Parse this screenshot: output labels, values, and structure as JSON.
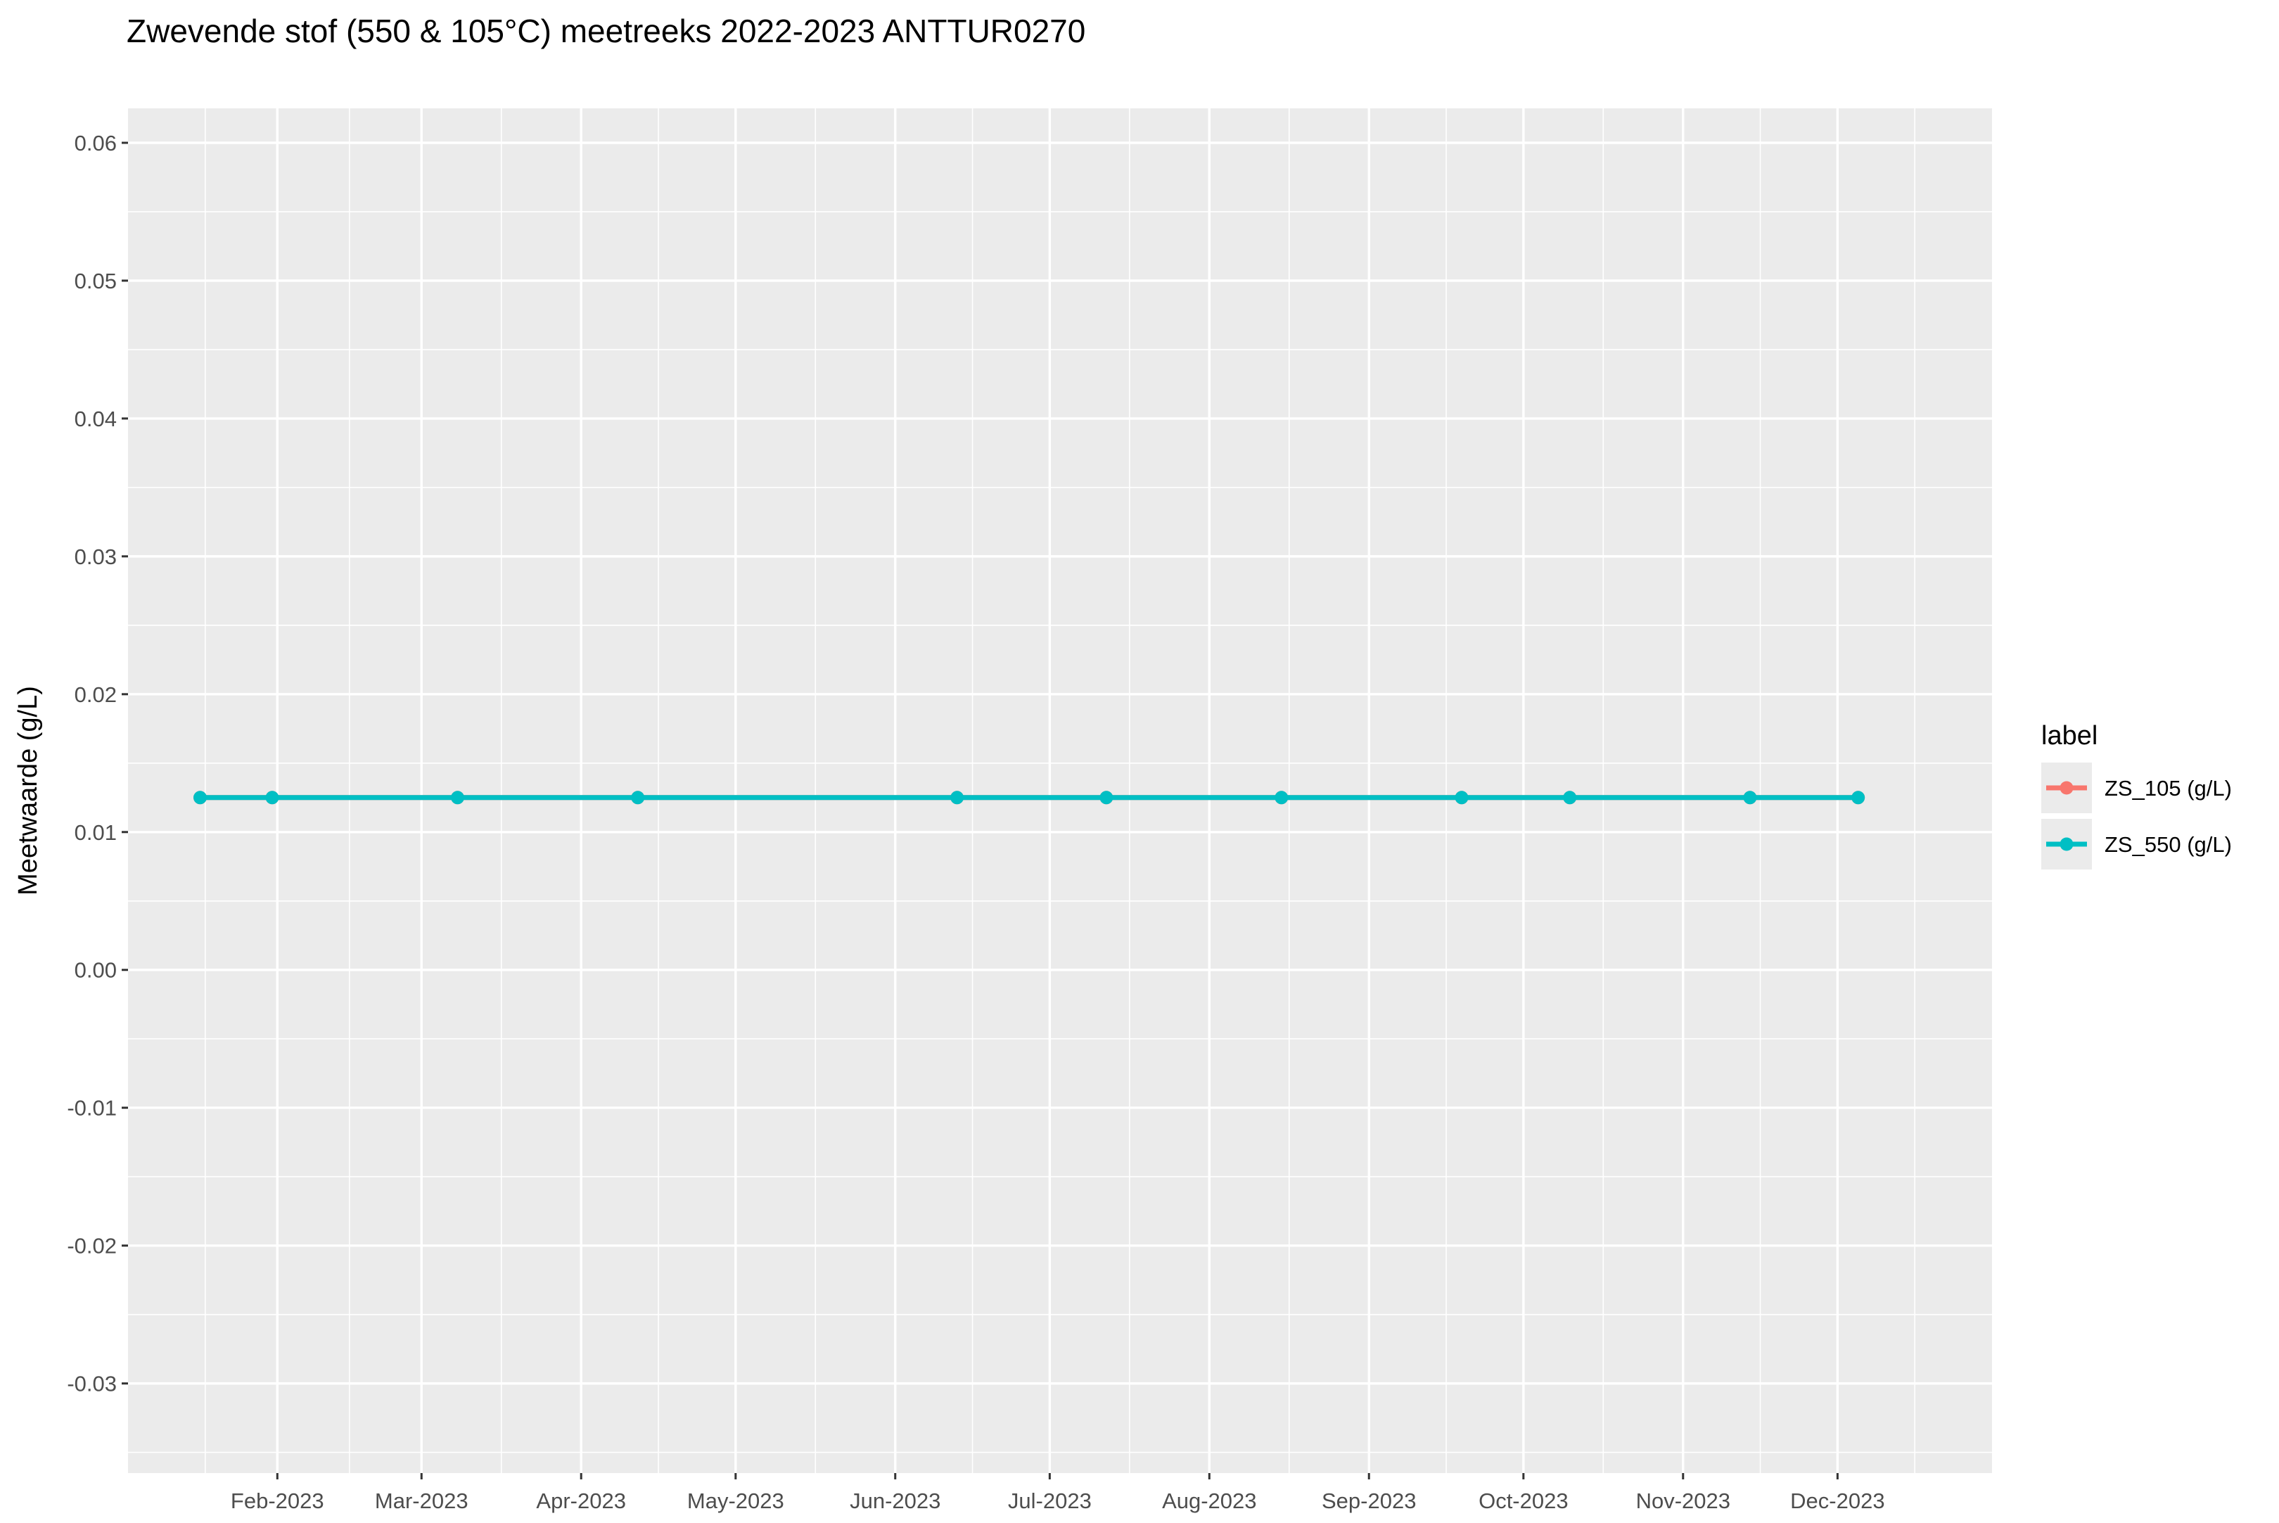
{
  "chart_data": {
    "type": "line",
    "title": "Zwevende stof (550 & 105°C) meetreeks 2022-2023 ANTTUR0270",
    "xlabel": "",
    "ylabel": "Meetwaarde (g/L)",
    "x_type": "date",
    "xlim": [
      "2023-01-03",
      "2023-12-31"
    ],
    "ylim": [
      -0.0365,
      0.0625
    ],
    "x_ticks": [
      "2023-02-01",
      "2023-03-01",
      "2023-04-01",
      "2023-05-01",
      "2023-06-01",
      "2023-07-01",
      "2023-08-01",
      "2023-09-01",
      "2023-10-01",
      "2023-11-01",
      "2023-12-01"
    ],
    "x_tick_labels": [
      "Feb-2023",
      "Mar-2023",
      "Apr-2023",
      "May-2023",
      "Jun-2023",
      "Jul-2023",
      "Aug-2023",
      "Sep-2023",
      "Oct-2023",
      "Nov-2023",
      "Dec-2023"
    ],
    "y_ticks": [
      -0.03,
      -0.02,
      -0.01,
      0.0,
      0.01,
      0.02,
      0.03,
      0.04,
      0.05,
      0.06
    ],
    "y_tick_labels": [
      "-0.03",
      "-0.02",
      "-0.01",
      "0.00",
      "0.01",
      "0.02",
      "0.03",
      "0.04",
      "0.05",
      "0.06"
    ],
    "grid": true,
    "legend": {
      "title": "label",
      "position": "right"
    },
    "series": [
      {
        "name": "ZS_105 (g/L)",
        "color": "#F8766D",
        "x": [
          "2023-01-17",
          "2023-01-31",
          "2023-03-08",
          "2023-04-12",
          "2023-06-13",
          "2023-07-12",
          "2023-08-15",
          "2023-09-19",
          "2023-10-10",
          "2023-11-14",
          "2023-12-05"
        ],
        "y": [
          0.0125,
          0.0125,
          0.0125,
          0.0125,
          0.0125,
          0.0125,
          0.0125,
          0.0125,
          0.0125,
          0.0125,
          0.0125
        ]
      },
      {
        "name": "ZS_550 (g/L)",
        "color": "#00BFC4",
        "x": [
          "2023-01-17",
          "2023-01-31",
          "2023-03-08",
          "2023-04-12",
          "2023-06-13",
          "2023-07-12",
          "2023-08-15",
          "2023-09-19",
          "2023-10-10",
          "2023-11-14",
          "2023-12-05"
        ],
        "y": [
          0.0125,
          0.0125,
          0.0125,
          0.0125,
          0.0125,
          0.0125,
          0.0125,
          0.0125,
          0.0125,
          0.0125,
          0.0125
        ]
      }
    ]
  }
}
